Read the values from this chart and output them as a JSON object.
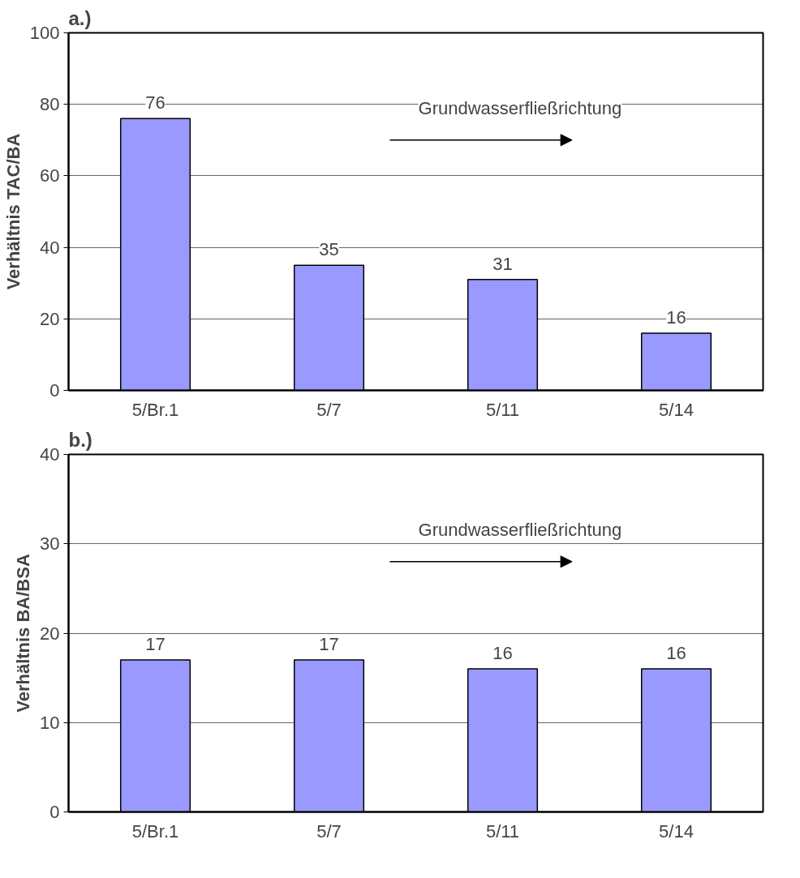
{
  "chart_data": [
    {
      "type": "bar",
      "title": "a.)",
      "ylabel": "Verhältnis TAC/BA",
      "categories": [
        "5/Br.1",
        "5/7",
        "5/11",
        "5/14"
      ],
      "values": [
        76,
        35,
        31,
        16
      ],
      "color": "#9999ff",
      "ylim": [
        0,
        100
      ],
      "yticks": [
        0,
        20,
        40,
        60,
        80,
        100
      ],
      "grid": "y",
      "data_labels": true,
      "annotations": [
        "Grundwasserfließrichtung"
      ]
    },
    {
      "type": "bar",
      "title": "b.)",
      "ylabel": "Verhältnis BA/BSA",
      "categories": [
        "5/Br.1",
        "5/7",
        "5/11",
        "5/14"
      ],
      "values": [
        17,
        17,
        16,
        16
      ],
      "color": "#9999ff",
      "ylim": [
        0,
        40
      ],
      "yticks": [
        0,
        10,
        20,
        30,
        40
      ],
      "grid": "y",
      "data_labels": true,
      "annotations": [
        "Grundwasserfließrichtung"
      ]
    }
  ]
}
